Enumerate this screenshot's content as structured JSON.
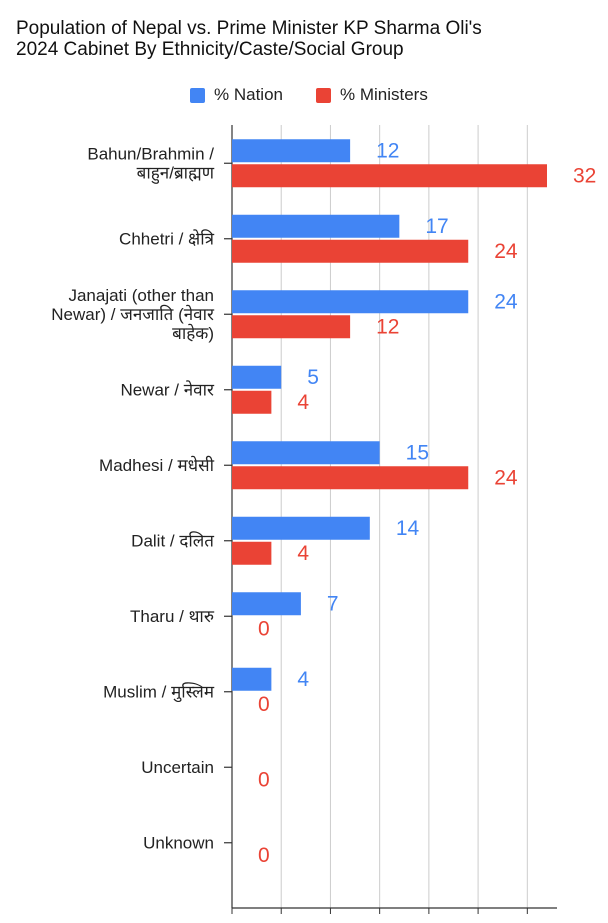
{
  "chart_data": {
    "type": "bar",
    "orientation": "horizontal",
    "title_lines": [
      "Population of Nepal vs. Prime Minister KP Sharma Oli's",
      "2024 Cabinet By Ethnicity/Caste/Social Group"
    ],
    "legend_position": "top",
    "grid": true,
    "xlim": [
      0,
      32
    ],
    "categories": [
      [
        "Bahun/Brahmin /",
        "बाहुन/ब्राह्मण"
      ],
      [
        "Chhetri / क्षेत्रि"
      ],
      [
        "Janajati (other than",
        "Newar) / जनजाति (नेवार",
        "बाहेक)"
      ],
      [
        "Newar / नेवार"
      ],
      [
        "Madhesi / मधेसी"
      ],
      [
        "Dalit / दलित"
      ],
      [
        "Tharu / थारु"
      ],
      [
        "Muslim / मुस्लिम"
      ],
      [
        "Uncertain"
      ],
      [
        "Unknown"
      ]
    ],
    "series": [
      {
        "name": "% Nation",
        "color": "#4285f4",
        "values": [
          12,
          17,
          24,
          5,
          15,
          14,
          7,
          4,
          0,
          0
        ],
        "show_zero_label": false
      },
      {
        "name": "% Ministers",
        "color": "#ea4335",
        "values": [
          32,
          24,
          12,
          4,
          24,
          4,
          0,
          0,
          0,
          0
        ],
        "show_zero_label": true
      }
    ]
  }
}
